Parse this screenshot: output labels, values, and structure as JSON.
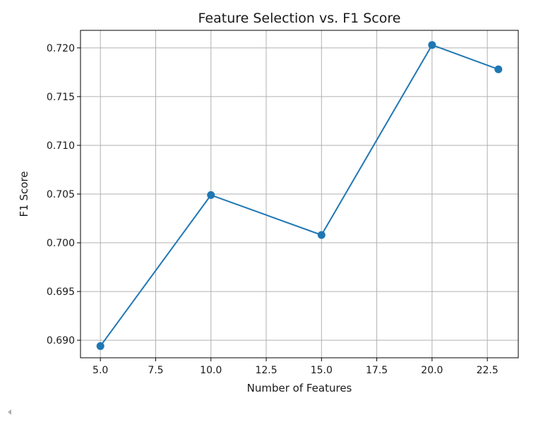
{
  "chart_data": {
    "type": "line",
    "title": "Feature Selection vs. F1 Score",
    "xlabel": "Number of Features",
    "ylabel": "F1 Score",
    "x": [
      5,
      10,
      15,
      20,
      23
    ],
    "series": [
      {
        "values": [
          0.6894,
          0.7049,
          0.7008,
          0.7203,
          0.7178
        ],
        "color": "#1f77b4",
        "marker": "circle"
      }
    ],
    "xlim": [
      4.1,
      23.9
    ],
    "ylim": [
      0.6882,
      0.7218
    ],
    "xticks": [
      5.0,
      7.5,
      10.0,
      12.5,
      15.0,
      17.5,
      20.0,
      22.5
    ],
    "xtick_labels": [
      "5.0",
      "7.5",
      "10.0",
      "12.5",
      "15.0",
      "17.5",
      "20.0",
      "22.5"
    ],
    "yticks": [
      0.69,
      0.695,
      0.7,
      0.705,
      0.71,
      0.715,
      0.72
    ],
    "ytick_labels": [
      "0.690",
      "0.695",
      "0.700",
      "0.705",
      "0.710",
      "0.715",
      "0.720"
    ],
    "grid": true,
    "grid_color": "#b0b0b0",
    "legend": "none"
  },
  "scroll_indicator_icon": "triangle-left-icon"
}
